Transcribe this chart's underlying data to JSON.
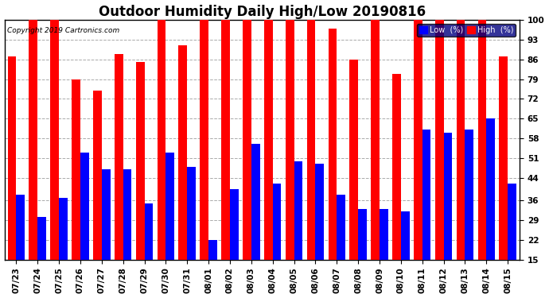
{
  "title": "Outdoor Humidity Daily High/Low 20190816",
  "copyright": "Copyright 2019 Cartronics.com",
  "categories": [
    "07/23",
    "07/24",
    "07/25",
    "07/26",
    "07/27",
    "07/28",
    "07/29",
    "07/30",
    "07/31",
    "08/01",
    "08/02",
    "08/03",
    "08/04",
    "08/05",
    "08/06",
    "08/07",
    "08/08",
    "08/09",
    "08/10",
    "08/11",
    "08/12",
    "08/13",
    "08/14",
    "08/15"
  ],
  "high": [
    87,
    100,
    100,
    79,
    75,
    88,
    85,
    100,
    91,
    100,
    100,
    100,
    100,
    100,
    100,
    97,
    86,
    100,
    81,
    100,
    100,
    100,
    100,
    87
  ],
  "low": [
    38,
    30,
    37,
    53,
    47,
    47,
    35,
    53,
    48,
    22,
    40,
    56,
    42,
    50,
    49,
    38,
    33,
    33,
    32,
    61,
    60,
    61,
    65,
    42
  ],
  "high_color": "#ff0000",
  "low_color": "#0000ff",
  "bg_color": "#ffffff",
  "grid_color": "#aaaaaa",
  "ylim_min": 15,
  "ylim_max": 100,
  "yticks": [
    15,
    22,
    29,
    36,
    44,
    51,
    58,
    65,
    72,
    79,
    86,
    93,
    100
  ],
  "bar_width": 0.4,
  "title_fontsize": 12,
  "tick_fontsize": 7.5,
  "legend_label_low": "Low  (%)",
  "legend_label_high": "High  (%)"
}
